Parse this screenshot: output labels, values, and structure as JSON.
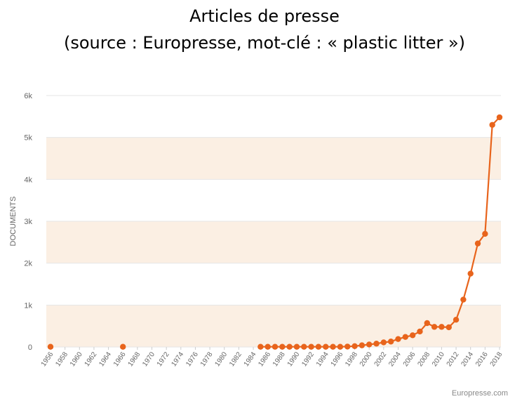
{
  "header": {
    "title": "Articles de presse",
    "subtitle": "(source : Europresse, mot-clé : « plastic litter »)"
  },
  "credit": "Europresse.com",
  "colors": {
    "series": "#e8641c",
    "band": "#fbefe3",
    "grid": "#e6e6e6",
    "axis_text": "#666666"
  },
  "chart_data": {
    "type": "line",
    "title": "Articles de presse",
    "subtitle": "(source : Europresse, mot-clé : « plastic litter »)",
    "xlabel": "",
    "ylabel": "DOCUMENTS",
    "ylim": [
      0,
      6000
    ],
    "yticks": [
      0,
      1000,
      2000,
      3000,
      4000,
      5000,
      6000
    ],
    "ytick_labels": [
      "0",
      "1k",
      "2k",
      "3k",
      "4k",
      "5k",
      "6k"
    ],
    "xlim": [
      1956,
      2018
    ],
    "xticks": [
      1956,
      1958,
      1960,
      1962,
      1964,
      1966,
      1968,
      1970,
      1972,
      1974,
      1976,
      1978,
      1980,
      1982,
      1984,
      1986,
      1988,
      1990,
      1992,
      1994,
      1996,
      1998,
      2000,
      2002,
      2004,
      2006,
      2008,
      2010,
      2012,
      2014,
      2016,
      2018
    ],
    "legend": "none",
    "series": [
      {
        "name": "",
        "segments": [
          {
            "x": [
              1956
            ],
            "y": [
              5
            ]
          },
          {
            "x": [
              1966
            ],
            "y": [
              5
            ]
          },
          {
            "x": [
              1985,
              1986,
              1987,
              1988,
              1989,
              1990,
              1991,
              1992,
              1993,
              1994,
              1995,
              1996,
              1997,
              1998,
              1999,
              2000,
              2001,
              2002,
              2003,
              2004,
              2005,
              2006,
              2007,
              2008,
              2009,
              2010,
              2011,
              2012,
              2013,
              2014,
              2015,
              2016,
              2017,
              2018
            ],
            "y": [
              5,
              5,
              5,
              5,
              5,
              5,
              5,
              5,
              5,
              5,
              5,
              5,
              10,
              20,
              40,
              60,
              80,
              110,
              130,
              190,
              240,
              280,
              370,
              570,
              480,
              480,
              470,
              650,
              1130,
              1750,
              2470,
              2700,
              5300,
              5480
            ]
          }
        ]
      }
    ]
  }
}
